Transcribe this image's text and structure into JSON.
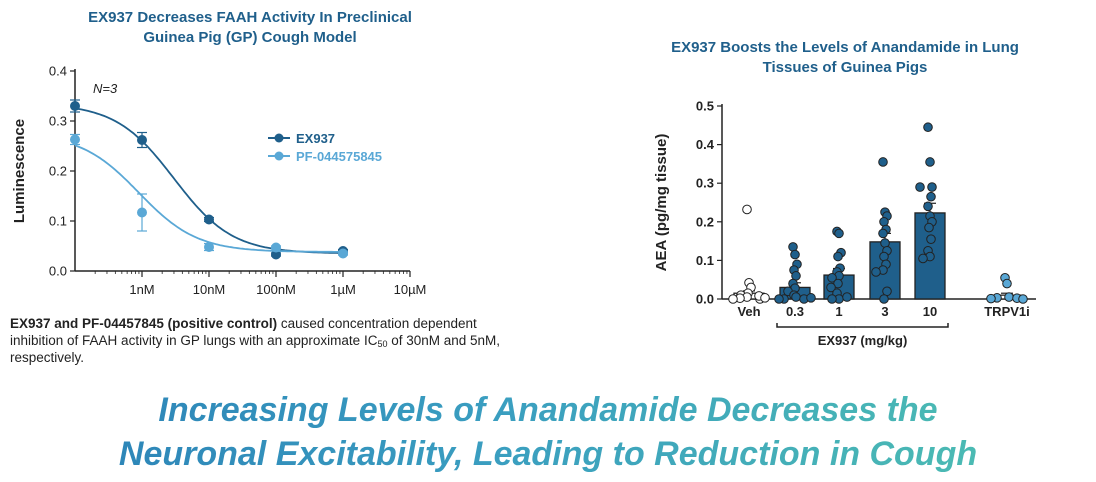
{
  "left_title_line1": "EX937 Decreases FAAH Activity In Preclinical",
  "left_title_line2": "Guinea Pig (GP) Cough Model",
  "right_title_line1": "EX937 Boosts the Levels of Anandamide  in Lung",
  "right_title_line2": "Tissues of Guinea Pigs",
  "caption": {
    "bold_part": "EX937 and PF-04457845 (positive control)",
    "text_part1": " caused concentration dependent inhibition of FAAH activity in GP lungs with an approximate ",
    "ic": "IC",
    "ic_sub": "50",
    "text_part2": " of 30nM and 5nM, respectively."
  },
  "headline_line1": "Increasing Levels of Anandamide Decreases the",
  "headline_line2": "Neuronal Excitability, Leading to Reduction in Cough",
  "colors": {
    "dark_blue": "#1f5f8b",
    "light_blue": "#5aa8d6"
  },
  "chart_data": [
    {
      "type": "line",
      "annotation": "N=3",
      "xlabel": "",
      "ylabel": "Luminescence",
      "ylim": [
        0,
        0.4
      ],
      "yticks": [
        "0.0",
        "0.1",
        "0.2",
        "0.3",
        "0.4"
      ],
      "xticks": [
        "1nM",
        "10nM",
        "100nM",
        "1µM",
        "10µM"
      ],
      "x_unit": "nM",
      "x_scale": "log",
      "legend_position": "right",
      "series": [
        {
          "name": "EX937",
          "color": "#1f5f8b",
          "x": [
            0.1,
            1,
            10,
            100,
            1000
          ],
          "y": [
            0.33,
            0.262,
            0.103,
            0.033,
            0.04
          ],
          "err": [
            0.012,
            0.015,
            0.004,
            0.003,
            0.003
          ]
        },
        {
          "name": "PF-044575845",
          "color": "#5aa8d6",
          "x": [
            0.1,
            1,
            10,
            100,
            1000
          ],
          "y": [
            0.263,
            0.117,
            0.048,
            0.047,
            0.035
          ],
          "err": [
            0.01,
            0.037,
            0.007,
            0.003,
            0.003
          ]
        }
      ]
    },
    {
      "type": "bar",
      "ylabel": "AEA (pg/mg tissue)",
      "ylim": [
        0,
        0.5
      ],
      "yticks": [
        "0.0",
        "0.1",
        "0.2",
        "0.3",
        "0.4",
        "0.5"
      ],
      "categories": [
        "Veh",
        "0.3",
        "1",
        "3",
        "10",
        "TRPV1i"
      ],
      "group_label": "EX937 (mg/kg)",
      "values": [
        0.015,
        0.03,
        0.062,
        0.148,
        0.223,
        0.01
      ],
      "errors": [
        0.006,
        0.012,
        0.017,
        0.022,
        0.025,
        0.005
      ],
      "bar_colors": [
        "#ffffff",
        "#1f5f8b",
        "#1f5f8b",
        "#1f5f8b",
        "#1f5f8b",
        "#ffffff"
      ],
      "points": [
        [
          0.232,
          0.042,
          0.03,
          0.015,
          0.01,
          0.005,
          0.002,
          0.0,
          0.0,
          0.008,
          0.003
        ],
        [
          0.135,
          0.115,
          0.09,
          0.075,
          0.06,
          0.04,
          0.028,
          0.02,
          0.01,
          0.005,
          0.0,
          0.0,
          0.0,
          0.003
        ],
        [
          0.175,
          0.17,
          0.12,
          0.11,
          0.08,
          0.07,
          0.06,
          0.055,
          0.04,
          0.03,
          0.015,
          0.0,
          0.0,
          0.005
        ],
        [
          0.355,
          0.225,
          0.215,
          0.2,
          0.18,
          0.17,
          0.145,
          0.125,
          0.11,
          0.09,
          0.075,
          0.07,
          0.02,
          0.0
        ],
        [
          0.445,
          0.355,
          0.29,
          0.29,
          0.265,
          0.24,
          0.215,
          0.2,
          0.185,
          0.155,
          0.125,
          0.11,
          0.105
        ],
        [
          0.055,
          0.04,
          0.005,
          0.003,
          0.002,
          0.001,
          0.0
        ]
      ],
      "point_colors": [
        "#ffffff",
        "#1f5f8b",
        "#1f5f8b",
        "#1f5f8b",
        "#1f5f8b",
        "#5aa8d6"
      ]
    }
  ]
}
